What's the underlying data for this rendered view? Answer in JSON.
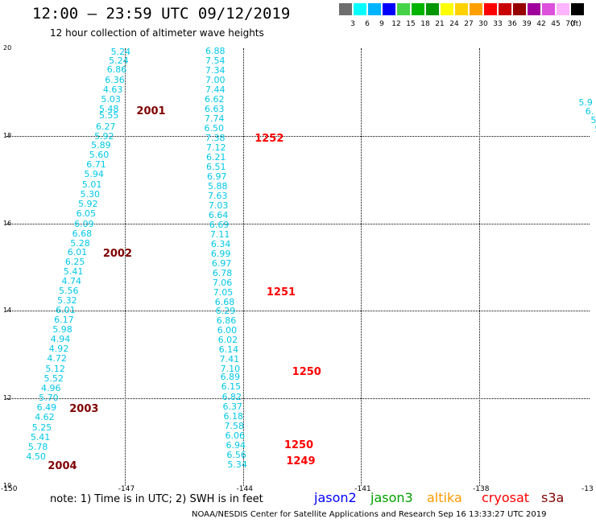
{
  "header": {
    "title": "12:00 – 23:59 UTC 09/12/2019",
    "subtitle": "12 hour collection of altimeter wave heights"
  },
  "color_scale": {
    "unit": "(ft)",
    "swatches": [
      {
        "color": "#6e6e6e",
        "label": "3"
      },
      {
        "color": "#00ffff",
        "label": "6"
      },
      {
        "color": "#00b4ff",
        "label": "9"
      },
      {
        "color": "#0000ff",
        "label": "12"
      },
      {
        "color": "#46d246",
        "label": "15"
      },
      {
        "color": "#00b400",
        "label": "18"
      },
      {
        "color": "#009600",
        "label": "21"
      },
      {
        "color": "#ffff00",
        "label": "24"
      },
      {
        "color": "#ffd200",
        "label": "27"
      },
      {
        "color": "#ffa000",
        "label": "30"
      },
      {
        "color": "#ff0000",
        "label": "33"
      },
      {
        "color": "#c80000",
        "label": "36"
      },
      {
        "color": "#960000",
        "label": "39"
      },
      {
        "color": "#a0009b",
        "label": "42"
      },
      {
        "color": "#dc50dc",
        "label": "45"
      },
      {
        "color": "#ffb4ff",
        "label": "70"
      },
      {
        "color": "#000000",
        "label": ""
      }
    ]
  },
  "map": {
    "lon_labels": [
      "-150",
      "-147",
      "-144",
      "-141",
      "-138",
      "-13"
    ],
    "lat_labels": [
      "20",
      "18",
      "16",
      "14",
      "12",
      "10"
    ],
    "track_a": [
      {
        "v": "5.24",
        "lon": -147.1,
        "lat": 19.9
      },
      {
        "v": "5.24",
        "lon": -147.15,
        "lat": 19.7
      },
      {
        "v": "6.86",
        "lon": -147.2,
        "lat": 19.5
      },
      {
        "v": "6.36",
        "lon": -147.25,
        "lat": 19.27
      },
      {
        "v": "4.63",
        "lon": -147.3,
        "lat": 19.05
      },
      {
        "v": "5.03",
        "lon": -147.35,
        "lat": 18.83
      },
      {
        "v": "5.48",
        "lon": -147.4,
        "lat": 18.61
      },
      {
        "v": "5.55",
        "lon": -147.4,
        "lat": 18.45
      },
      {
        "v": "6.27",
        "lon": -147.48,
        "lat": 18.2
      },
      {
        "v": "5.92",
        "lon": -147.52,
        "lat": 17.97
      },
      {
        "v": "5.89",
        "lon": -147.6,
        "lat": 17.77
      },
      {
        "v": "5.60",
        "lon": -147.65,
        "lat": 17.55
      },
      {
        "v": "6.71",
        "lon": -147.72,
        "lat": 17.33
      },
      {
        "v": "5.94",
        "lon": -147.78,
        "lat": 17.11
      },
      {
        "v": "5.01",
        "lon": -147.83,
        "lat": 16.88
      },
      {
        "v": "5.30",
        "lon": -147.88,
        "lat": 16.65
      },
      {
        "v": "5.92",
        "lon": -147.93,
        "lat": 16.43
      },
      {
        "v": "6.05",
        "lon": -147.98,
        "lat": 16.21
      },
      {
        "v": "6.09",
        "lon": -148.03,
        "lat": 15.98
      },
      {
        "v": "6.68",
        "lon": -148.08,
        "lat": 15.76
      },
      {
        "v": "5.28",
        "lon": -148.13,
        "lat": 15.54
      },
      {
        "v": "6.01",
        "lon": -148.2,
        "lat": 15.33
      },
      {
        "v": "6.25",
        "lon": -148.26,
        "lat": 15.11
      },
      {
        "v": "5.41",
        "lon": -148.3,
        "lat": 14.89
      },
      {
        "v": "4.74",
        "lon": -148.35,
        "lat": 14.66
      },
      {
        "v": "5.56",
        "lon": -148.42,
        "lat": 14.44
      },
      {
        "v": "5.32",
        "lon": -148.46,
        "lat": 14.22
      },
      {
        "v": "6.01",
        "lon": -148.5,
        "lat": 14.0
      },
      {
        "v": "6.17",
        "lon": -148.54,
        "lat": 13.78
      },
      {
        "v": "5.98",
        "lon": -148.58,
        "lat": 13.56
      },
      {
        "v": "4.94",
        "lon": -148.63,
        "lat": 13.34
      },
      {
        "v": "4.92",
        "lon": -148.67,
        "lat": 13.12
      },
      {
        "v": "4.72",
        "lon": -148.72,
        "lat": 12.9
      },
      {
        "v": "5.12",
        "lon": -148.76,
        "lat": 12.67
      },
      {
        "v": "5.52",
        "lon": -148.8,
        "lat": 12.45
      },
      {
        "v": "4.96",
        "lon": -148.87,
        "lat": 12.23
      },
      {
        "v": "5.70",
        "lon": -148.93,
        "lat": 12.0
      },
      {
        "v": "6.49",
        "lon": -148.98,
        "lat": 11.78
      },
      {
        "v": "4.62",
        "lon": -149.03,
        "lat": 11.56
      },
      {
        "v": "5.25",
        "lon": -149.1,
        "lat": 11.33
      },
      {
        "v": "5.41",
        "lon": -149.14,
        "lat": 11.1
      },
      {
        "v": "5.78",
        "lon": -149.2,
        "lat": 10.88
      },
      {
        "v": "4.50",
        "lon": -149.25,
        "lat": 10.66
      }
    ],
    "track_b": [
      {
        "v": "6.88",
        "lon": -144.7,
        "lat": 19.92
      },
      {
        "v": "7.54",
        "lon": -144.7,
        "lat": 19.7
      },
      {
        "v": "7.34",
        "lon": -144.7,
        "lat": 19.48
      },
      {
        "v": "7.00",
        "lon": -144.7,
        "lat": 19.26
      },
      {
        "v": "7.44",
        "lon": -144.7,
        "lat": 19.04
      },
      {
        "v": "6.62",
        "lon": -144.72,
        "lat": 18.82
      },
      {
        "v": "6.63",
        "lon": -144.72,
        "lat": 18.6
      },
      {
        "v": "7.74",
        "lon": -144.72,
        "lat": 18.38
      },
      {
        "v": "6.50",
        "lon": -144.73,
        "lat": 18.16
      },
      {
        "v": "7.38",
        "lon": -144.7,
        "lat": 17.94
      },
      {
        "v": "7.12",
        "lon": -144.68,
        "lat": 17.72
      },
      {
        "v": "6.21",
        "lon": -144.68,
        "lat": 17.5
      },
      {
        "v": "6.51",
        "lon": -144.68,
        "lat": 17.28
      },
      {
        "v": "6.97",
        "lon": -144.66,
        "lat": 17.06
      },
      {
        "v": "5.88",
        "lon": -144.64,
        "lat": 16.84
      },
      {
        "v": "7.63",
        "lon": -144.64,
        "lat": 16.62
      },
      {
        "v": "7.03",
        "lon": -144.62,
        "lat": 16.4
      },
      {
        "v": "6.64",
        "lon": -144.62,
        "lat": 16.18
      },
      {
        "v": "6.69",
        "lon": -144.6,
        "lat": 15.96
      },
      {
        "v": "7.11",
        "lon": -144.58,
        "lat": 15.74
      },
      {
        "v": "6.34",
        "lon": -144.56,
        "lat": 15.52
      },
      {
        "v": "6.99",
        "lon": -144.56,
        "lat": 15.3
      },
      {
        "v": "6.97",
        "lon": -144.54,
        "lat": 15.08
      },
      {
        "v": "6.78",
        "lon": -144.52,
        "lat": 14.86
      },
      {
        "v": "7.06",
        "lon": -144.52,
        "lat": 14.64
      },
      {
        "v": "7.05",
        "lon": -144.5,
        "lat": 14.42
      },
      {
        "v": "6.68",
        "lon": -144.46,
        "lat": 14.2
      },
      {
        "v": "6.29",
        "lon": -144.44,
        "lat": 13.98
      },
      {
        "v": "6.86",
        "lon": -144.42,
        "lat": 13.76
      },
      {
        "v": "6.00",
        "lon": -144.4,
        "lat": 13.54
      },
      {
        "v": "6.02",
        "lon": -144.38,
        "lat": 13.32
      },
      {
        "v": "6.14",
        "lon": -144.36,
        "lat": 13.1
      },
      {
        "v": "7.41",
        "lon": -144.34,
        "lat": 12.88
      },
      {
        "v": "7.10",
        "lon": -144.32,
        "lat": 12.66
      },
      {
        "v": "6.89",
        "lon": -144.32,
        "lat": 12.48
      },
      {
        "v": "6.15",
        "lon": -144.3,
        "lat": 12.26
      },
      {
        "v": "6.82",
        "lon": -144.28,
        "lat": 12.02
      },
      {
        "v": "6.37",
        "lon": -144.26,
        "lat": 11.8
      },
      {
        "v": "6.18",
        "lon": -144.24,
        "lat": 11.58
      },
      {
        "v": "7.58",
        "lon": -144.22,
        "lat": 11.36
      },
      {
        "v": "6.06",
        "lon": -144.2,
        "lat": 11.14
      },
      {
        "v": "6.94",
        "lon": -144.18,
        "lat": 10.92
      },
      {
        "v": "6.56",
        "lon": -144.16,
        "lat": 10.7
      },
      {
        "v": "5.34",
        "lon": -144.14,
        "lat": 10.48
      }
    ],
    "track_c": [
      {
        "v": "5.9",
        "lon": -135.3,
        "lat": 18.75
      },
      {
        "v": "6.",
        "lon": -135.2,
        "lat": 18.55
      },
      {
        "v": "5",
        "lon": -135.1,
        "lat": 18.35
      },
      {
        "v": "5",
        "lon": -135.0,
        "lat": 18.15
      }
    ],
    "pass_labels": [
      {
        "text": "2001",
        "color": "#800000",
        "lon": -146.7,
        "lat": 18.55
      },
      {
        "text": "2002",
        "color": "#800000",
        "lon": -147.55,
        "lat": 15.3
      },
      {
        "text": "2003",
        "color": "#800000",
        "lon": -148.4,
        "lat": 11.75
      },
      {
        "text": "2004",
        "color": "#800000",
        "lon": -148.95,
        "lat": 10.45
      },
      {
        "text": "1252",
        "color": "#ff0000",
        "lon": -143.7,
        "lat": 17.92
      },
      {
        "text": "1251",
        "color": "#ff0000",
        "lon": -143.4,
        "lat": 14.42
      },
      {
        "text": "1250",
        "color": "#ff0000",
        "lon": -142.75,
        "lat": 12.6
      },
      {
        "text": "1250",
        "color": "#ff0000",
        "lon": -142.95,
        "lat": 10.92
      },
      {
        "text": "1249",
        "color": "#ff0000",
        "lon": -142.9,
        "lat": 10.55
      }
    ]
  },
  "footer": {
    "note": "note:  1) Time is in UTC; 2) SWH is in feet",
    "satellites": [
      {
        "name": "jason2",
        "color": "#0000ff"
      },
      {
        "name": "jason3",
        "color": "#00a000"
      },
      {
        "name": "altika",
        "color": "#ff9900"
      },
      {
        "name": "cryosat",
        "color": "#ff0000"
      },
      {
        "name": "s3a",
        "color": "#800000"
      }
    ],
    "credit": "NOAA/NESDIS Center for Satellite Applications and Research    Sep 16 13:33:27 UTC 2019"
  }
}
